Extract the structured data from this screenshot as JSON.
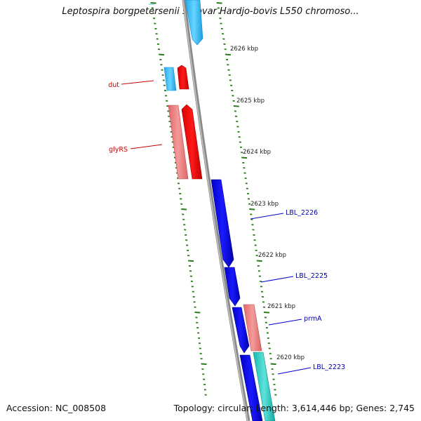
{
  "title": "Leptospira borgpetersenii serovar Hardjo-bovis L550 chromoso...",
  "footer": {
    "accession": "Accession: NC_008508",
    "topology": "Topology: circular; Length: 3,614,446 bp; Genes: 2,745"
  },
  "colors": {
    "backbone": "#8a8a8a",
    "ticks": "#2a7a1a",
    "rna_gene_label": "#cc0000",
    "protein_gene_label": "#0000aa"
  },
  "scale_labels": [
    "2626 kbp",
    "2625 kbp",
    "2624 kbp",
    "2623 kbp",
    "2622 kbp",
    "2621 kbp",
    "2620 kbp"
  ],
  "gene_labels": [
    {
      "name": "dut",
      "kind": "rna"
    },
    {
      "name": "glyRS",
      "kind": "rna"
    },
    {
      "name": "LBL_2226",
      "kind": "protein"
    },
    {
      "name": "LBL_2225",
      "kind": "protein"
    },
    {
      "name": "prmA",
      "kind": "protein"
    },
    {
      "name": "LBL_2223",
      "kind": "protein"
    }
  ]
}
